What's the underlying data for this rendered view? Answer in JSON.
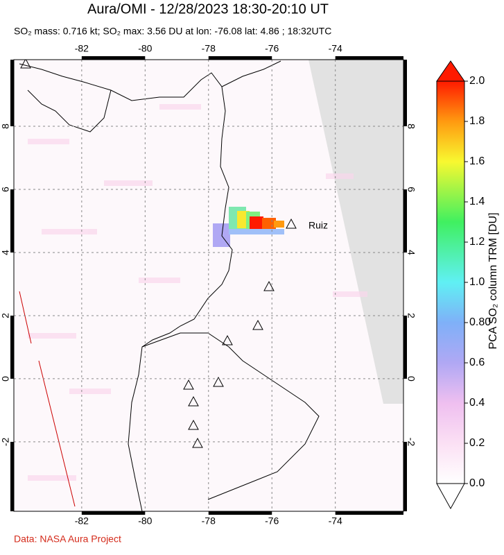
{
  "title": "Aura/OMI - 12/28/2023 18:30-20:10 UT",
  "subtitle": "SO₂ mass: 0.716 kt; SO₂ max: 3.56 DU at lon: -76.08 lat: 4.86 ; 18:32UTC",
  "map": {
    "lonlim": [
      -84.14,
      -71.85
    ],
    "latlim": [
      -4.2,
      10.11
    ],
    "lon_ticks": [
      -82,
      -80,
      -78,
      -76,
      -74
    ],
    "lat_ticks": [
      8,
      6,
      4,
      2,
      0,
      -2
    ],
    "volcano_label": "Ruiz"
  },
  "colorbar": {
    "label": "PCA SO₂ column TRM [DU]",
    "lim": [
      0,
      2
    ],
    "ticks": [
      {
        "value": 0,
        "label": "0.0"
      },
      0.2,
      0.4,
      0.6,
      {
        "value": 0.8,
        "label": "0.80"
      },
      {
        "value": 1,
        "label": "1.0"
      },
      1.2,
      1.4,
      1.6,
      1.8,
      {
        "value": 2,
        "label": "2.0"
      }
    ]
  },
  "footer": "Data: NASA Aura Project"
}
